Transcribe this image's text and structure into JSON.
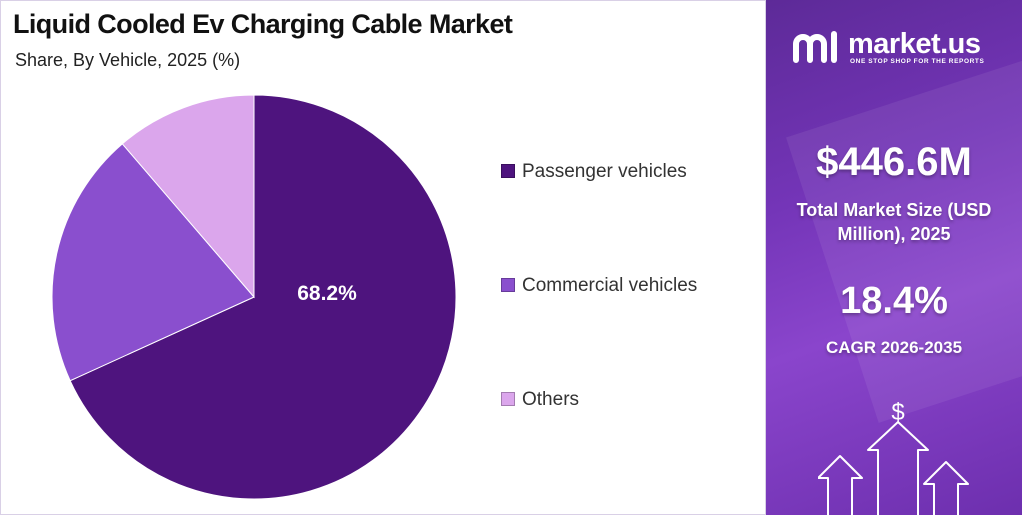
{
  "header": {
    "title": "Liquid Cooled Ev Charging Cable Market",
    "subtitle": "Share, By Vehicle, 2025 (%)"
  },
  "chart_data": {
    "type": "pie",
    "categories": [
      "Passenger vehicles",
      "Commercial vehicles",
      "Others"
    ],
    "values": [
      68.2,
      20.5,
      11.3
    ],
    "colors": [
      "#4e147e",
      "#8a4fce",
      "#dba6ec"
    ],
    "data_labels": [
      "68.2%",
      "",
      ""
    ],
    "legend": "right",
    "start_angle_deg": 0,
    "direction": "clockwise"
  },
  "brand": {
    "name": "market.us",
    "tagline": "ONE STOP SHOP FOR THE REPORTS",
    "icon": "market-us-logo-icon"
  },
  "stats": {
    "market_size_value": "$446.6M",
    "market_size_label": "Total Market Size (USD Million), 2025",
    "cagr_value": "18.4%",
    "cagr_label": "CAGR 2026-2035",
    "growth_icon": "dollar-growth-arrows-icon"
  },
  "theme": {
    "panel_gradient": [
      "#5d2a98",
      "#8a45cc"
    ],
    "text_dark": "#111111"
  }
}
